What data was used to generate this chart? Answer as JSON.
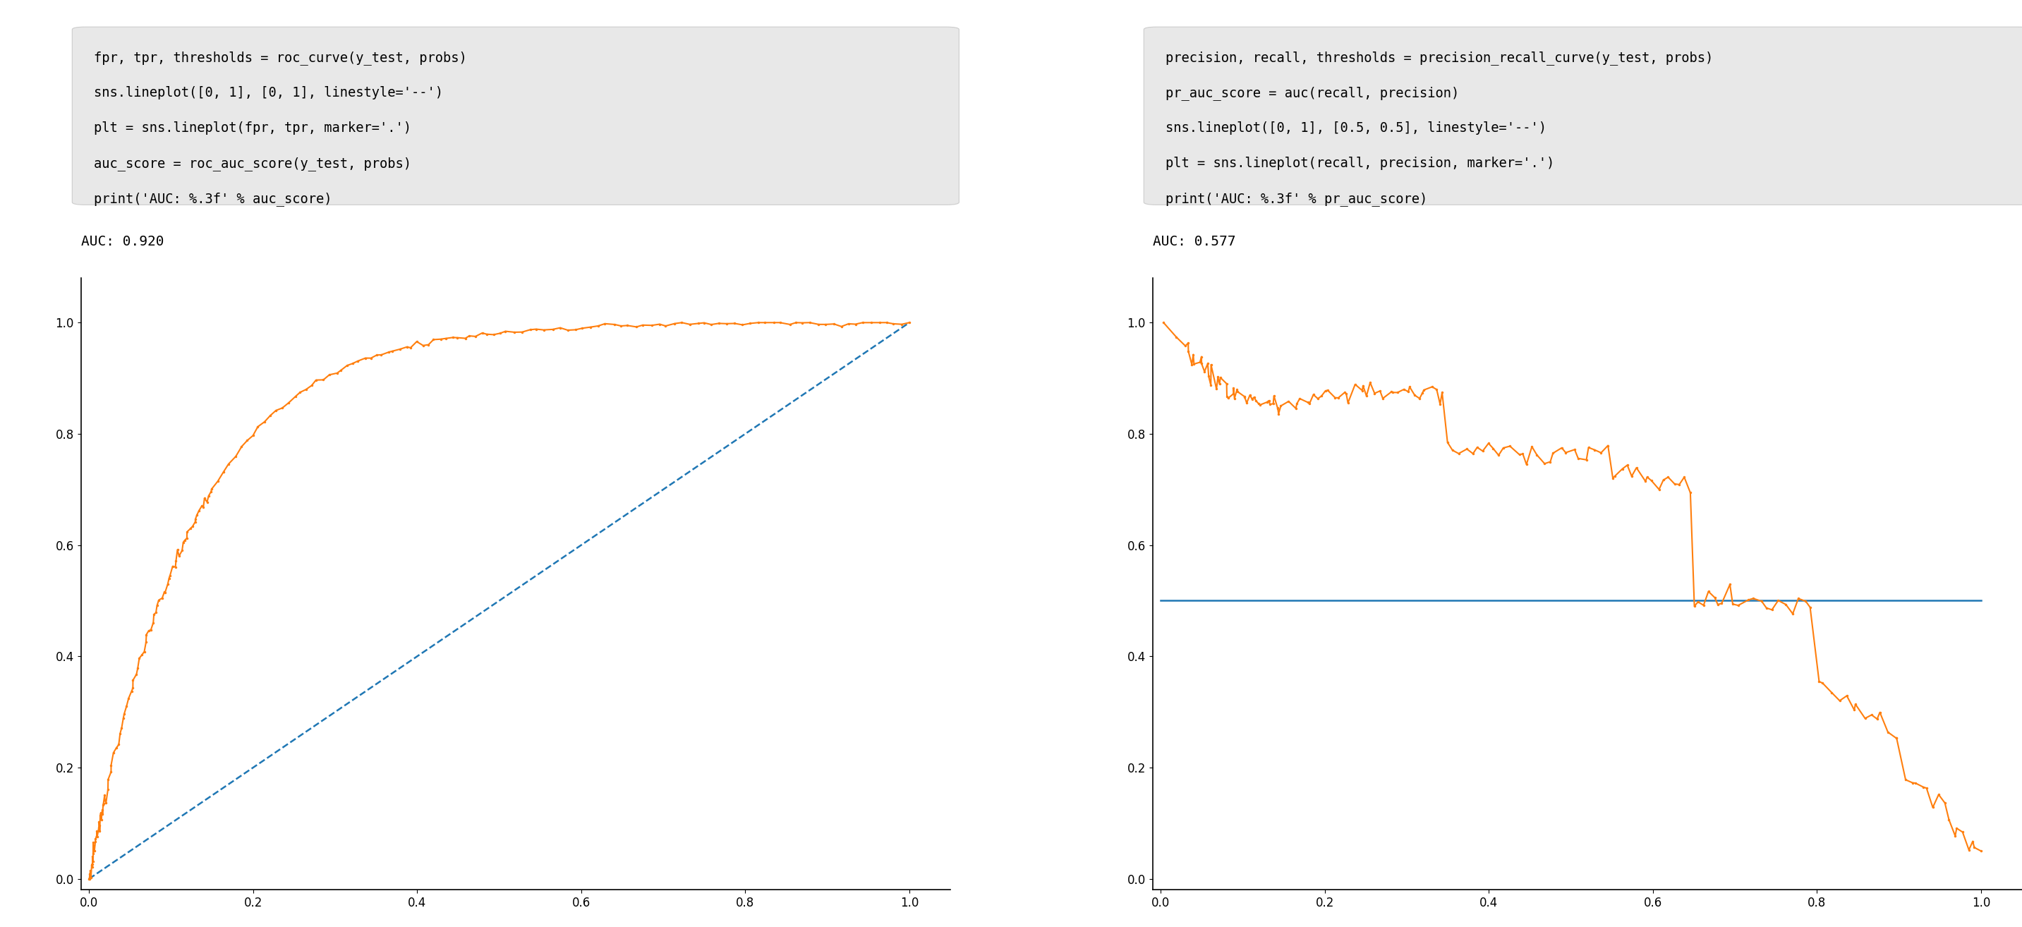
{
  "fig_width": 28.66,
  "fig_height": 13.14,
  "bg_color": "#ffffff",
  "code_box1_lines": [
    "fpr, tpr, thresholds = roc_curve(y_test, probs)",
    "sns.lineplot([0, 1], [0, 1], linestyle='--')",
    "plt = sns.lineplot(fpr, tpr, marker='.')",
    "auc_score = roc_auc_score(y_test, probs)",
    "print('AUC: %.3f' % auc_score)"
  ],
  "code_box2_lines": [
    "precision, recall, thresholds = precision_recall_curve(y_test, probs)",
    "pr_auc_score = auc(recall, precision)",
    "sns.lineplot([0, 1], [0.5, 0.5], linestyle='--')",
    "plt = sns.lineplot(recall, precision, marker='.')",
    "print('AUC: %.3f' % pr_auc_score)"
  ],
  "auc_text1": "AUC: 0.920",
  "auc_text2": "AUC: 0.577",
  "line_color": "#1f77b4",
  "curve_color": "#ff7f0e",
  "code_box_bg": "#e8e8e8",
  "code_font_size": 13.5,
  "auc_font_size": 14
}
